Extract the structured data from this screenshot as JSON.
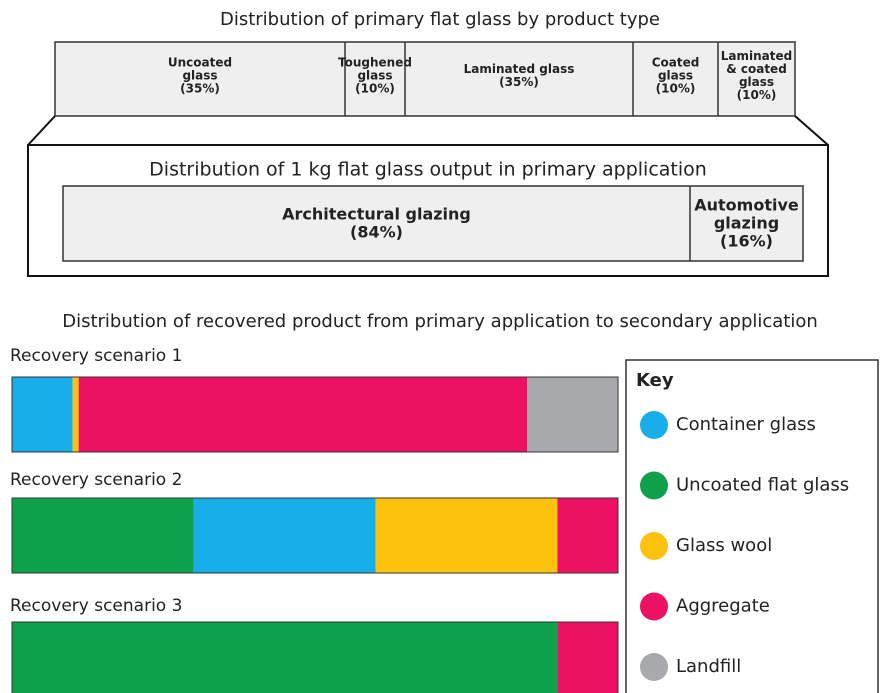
{
  "titles": {
    "product": "Distribution of primary flat glass by product type",
    "application": "Distribution of 1 kg flat glass output in primary application",
    "recovery": "Distribution of recovered product from primary application to secondary application"
  },
  "products": [
    {
      "lines": [
        "Uncoated",
        "glass",
        "(35%)"
      ]
    },
    {
      "lines": [
        "Toughened",
        "glass",
        "(10%)"
      ]
    },
    {
      "lines": [
        "Laminated glass",
        "(35%)"
      ]
    },
    {
      "lines": [
        "Coated",
        "glass",
        "(10%)"
      ]
    },
    {
      "lines": [
        "Laminated",
        "& coated",
        "glass",
        "(10%)"
      ]
    }
  ],
  "applications": [
    {
      "lines": [
        "Architectural glazing",
        "(84%)"
      ]
    },
    {
      "lines": [
        "Automotive",
        "glazing",
        "(16%)"
      ]
    }
  ],
  "key": {
    "title": "Key",
    "items": [
      {
        "name": "Container glass",
        "color": "#17aee9"
      },
      {
        "name": "Uncoated flat glass",
        "color": "#0ea04b"
      },
      {
        "name": "Glass wool",
        "color": "#fdc20e"
      },
      {
        "name": "Aggregate",
        "color": "#ec1163"
      },
      {
        "name": "Landfill",
        "color": "#a7a9ac"
      }
    ]
  },
  "scenarios": [
    {
      "name": "Recovery scenario 1",
      "values": [
        10,
        1,
        74,
        15
      ],
      "colors": [
        "#17aee9",
        "#fdc20e",
        "#ec1163",
        "#a7a9ac"
      ]
    },
    {
      "name": "Recovery scenario 2",
      "values": [
        30,
        30,
        30,
        10
      ],
      "colors": [
        "#0ea04b",
        "#17aee9",
        "#fdc20e",
        "#ec1163"
      ]
    },
    {
      "name": "Recovery scenario 3",
      "values": [
        90,
        10
      ],
      "colors": [
        "#0ea04b",
        "#ec1163"
      ]
    }
  ]
}
